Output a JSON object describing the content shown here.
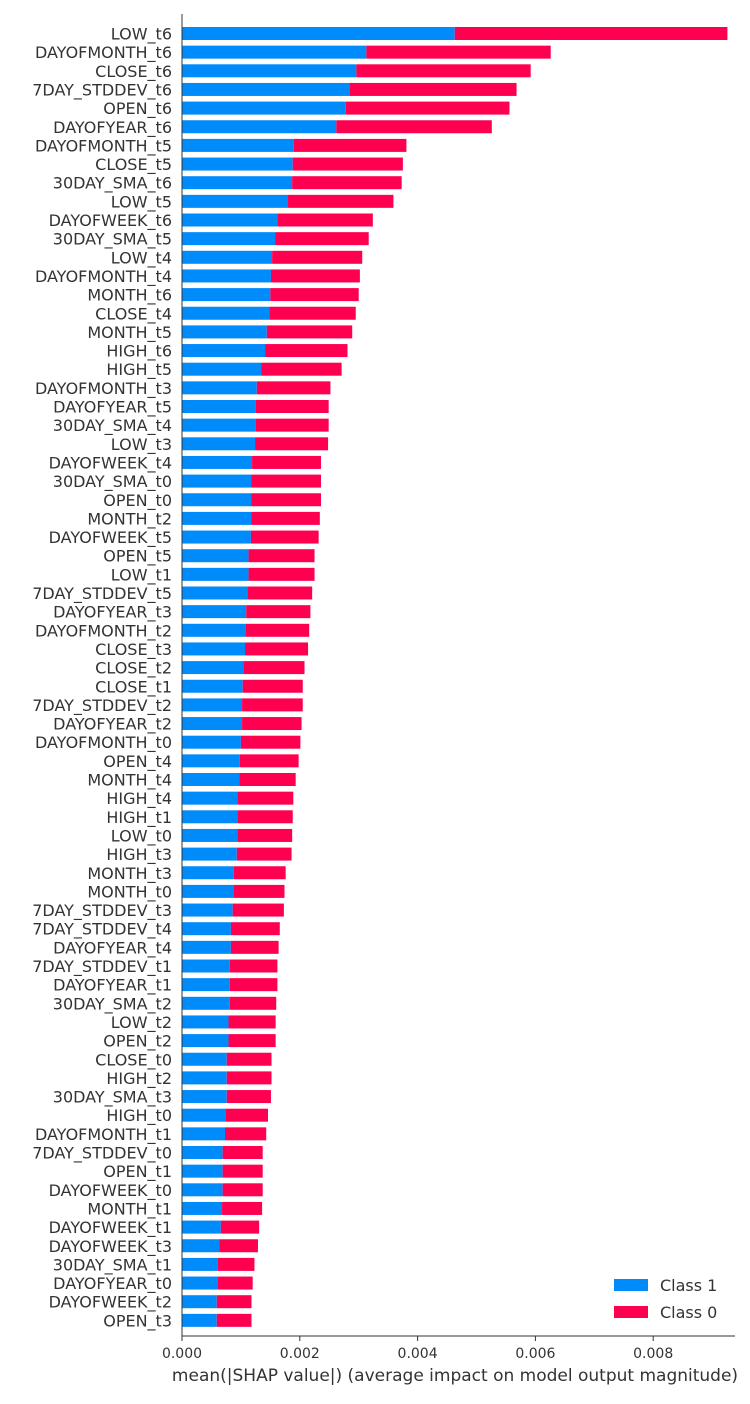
{
  "chart_data": {
    "type": "bar",
    "orientation": "horizontal",
    "stacked": true,
    "title": "",
    "xlabel": "mean(|SHAP value|) (average impact on model output magnitude)",
    "ylabel": "",
    "xlim": [
      0,
      0.0095
    ],
    "x_ticks": [
      "0.000",
      "0.002",
      "0.004",
      "0.006",
      "0.008"
    ],
    "x_tick_values": [
      0,
      0.002,
      0.004,
      0.006,
      0.008
    ],
    "grid": false,
    "legend_position": "bottom-right",
    "categories": [
      "LOW_t6",
      "DAYOFMONTH_t6",
      "CLOSE_t6",
      "7DAY_STDDEV_t6",
      "OPEN_t6",
      "DAYOFYEAR_t6",
      "DAYOFMONTH_t5",
      "CLOSE_t5",
      "30DAY_SMA_t6",
      "LOW_t5",
      "DAYOFWEEK_t6",
      "30DAY_SMA_t5",
      "LOW_t4",
      "DAYOFMONTH_t4",
      "MONTH_t6",
      "CLOSE_t4",
      "MONTH_t5",
      "HIGH_t6",
      "HIGH_t5",
      "DAYOFMONTH_t3",
      "DAYOFYEAR_t5",
      "30DAY_SMA_t4",
      "LOW_t3",
      "DAYOFWEEK_t4",
      "30DAY_SMA_t0",
      "OPEN_t0",
      "MONTH_t2",
      "DAYOFWEEK_t5",
      "OPEN_t5",
      "LOW_t1",
      "7DAY_STDDEV_t5",
      "DAYOFYEAR_t3",
      "DAYOFMONTH_t2",
      "CLOSE_t3",
      "CLOSE_t2",
      "CLOSE_t1",
      "7DAY_STDDEV_t2",
      "DAYOFYEAR_t2",
      "DAYOFMONTH_t0",
      "OPEN_t4",
      "MONTH_t4",
      "HIGH_t4",
      "HIGH_t1",
      "LOW_t0",
      "HIGH_t3",
      "MONTH_t3",
      "MONTH_t0",
      "7DAY_STDDEV_t3",
      "7DAY_STDDEV_t4",
      "DAYOFYEAR_t4",
      "7DAY_STDDEV_t1",
      "DAYOFYEAR_t1",
      "30DAY_SMA_t2",
      "LOW_t2",
      "OPEN_t2",
      "CLOSE_t0",
      "HIGH_t2",
      "30DAY_SMA_t3",
      "HIGH_t0",
      "DAYOFMONTH_t1",
      "7DAY_STDDEV_t0",
      "OPEN_t1",
      "DAYOFWEEK_t0",
      "MONTH_t1",
      "DAYOFWEEK_t1",
      "DAYOFWEEK_t3",
      "30DAY_SMA_t1",
      "DAYOFYEAR_t0",
      "DAYOFWEEK_t2",
      "OPEN_t3"
    ],
    "series": [
      {
        "name": "Class 1",
        "color": "#008bfb",
        "values": [
          0.00463,
          0.00313,
          0.00296,
          0.00284,
          0.00278,
          0.00262,
          0.0019,
          0.00188,
          0.00187,
          0.0018,
          0.00162,
          0.00158,
          0.00153,
          0.00151,
          0.0015,
          0.00148,
          0.00144,
          0.00141,
          0.00135,
          0.00127,
          0.00125,
          0.00125,
          0.00124,
          0.00119,
          0.00118,
          0.00118,
          0.00118,
          0.00117,
          0.00113,
          0.00113,
          0.00111,
          0.00109,
          0.00108,
          0.00107,
          0.00104,
          0.00103,
          0.00102,
          0.00102,
          0.001,
          0.00098,
          0.00097,
          0.00094,
          0.00094,
          0.00094,
          0.00093,
          0.00088,
          0.00087,
          0.00086,
          0.00083,
          0.00083,
          0.00081,
          0.00081,
          0.00081,
          0.00079,
          0.00079,
          0.00076,
          0.00076,
          0.00076,
          0.00074,
          0.00073,
          0.00069,
          0.00069,
          0.00069,
          0.00068,
          0.00066,
          0.00063,
          0.00061,
          0.0006,
          0.00059,
          0.00059
        ]
      },
      {
        "name": "Class 0",
        "color": "#ff0051",
        "values": [
          0.00463,
          0.00313,
          0.00296,
          0.00284,
          0.00278,
          0.00264,
          0.00191,
          0.00187,
          0.00186,
          0.00179,
          0.00162,
          0.00159,
          0.00153,
          0.00151,
          0.0015,
          0.00147,
          0.00145,
          0.0014,
          0.00136,
          0.00125,
          0.00124,
          0.00124,
          0.00124,
          0.00117,
          0.00118,
          0.00118,
          0.00116,
          0.00115,
          0.00112,
          0.00112,
          0.0011,
          0.00109,
          0.00108,
          0.00107,
          0.00104,
          0.00102,
          0.00103,
          0.00101,
          0.00101,
          0.001,
          0.00096,
          0.00095,
          0.00094,
          0.00093,
          0.00093,
          0.00088,
          0.00087,
          0.00087,
          0.00083,
          0.00081,
          0.00081,
          0.00081,
          0.00079,
          0.0008,
          0.0008,
          0.00076,
          0.00076,
          0.00075,
          0.00072,
          0.0007,
          0.00068,
          0.00068,
          0.00068,
          0.00068,
          0.00065,
          0.00066,
          0.00062,
          0.0006,
          0.00059,
          0.00059
        ]
      }
    ],
    "legend": [
      {
        "label": "Class 1",
        "color": "#008bfb"
      },
      {
        "label": "Class 0",
        "color": "#ff0051"
      }
    ]
  }
}
